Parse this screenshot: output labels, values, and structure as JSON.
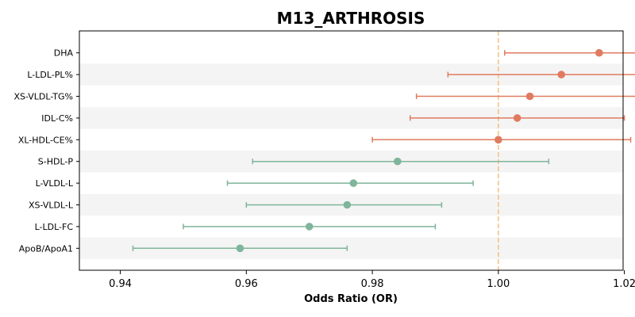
{
  "chart_data": {
    "type": "forest",
    "title": "M13_ARTHROSIS",
    "xlabel": "Odds Ratio (OR)",
    "ylabel": "",
    "xlim": [
      0.9335,
      1.0198
    ],
    "xticks": [
      "0.94",
      "0.96",
      "0.98",
      "1.00",
      "1.02"
    ],
    "reference_line": 1.0,
    "colors": {
      "positive": "#e07b5f",
      "negative": "#7fb59a",
      "reference": "#f5c07a",
      "band": "#f4f4f4"
    },
    "rows": [
      {
        "label": "DHA",
        "or": 1.016,
        "lo": 1.001,
        "hi": 1.031,
        "color": "#e07b5f"
      },
      {
        "label": "L-LDL-PL%",
        "or": 1.01,
        "lo": 0.992,
        "hi": 1.028,
        "color": "#e07b5f"
      },
      {
        "label": "XS-VLDL-TG%",
        "or": 1.005,
        "lo": 0.987,
        "hi": 1.024,
        "color": "#e07b5f"
      },
      {
        "label": "IDL-C%",
        "or": 1.003,
        "lo": 0.986,
        "hi": 1.02,
        "color": "#e07b5f"
      },
      {
        "label": "XL-HDL-CE%",
        "or": 1.0,
        "lo": 0.98,
        "hi": 1.021,
        "color": "#e07b5f"
      },
      {
        "label": "S-HDL-P",
        "or": 0.984,
        "lo": 0.961,
        "hi": 1.008,
        "color": "#7fb59a"
      },
      {
        "label": "L-VLDL-L",
        "or": 0.977,
        "lo": 0.957,
        "hi": 0.996,
        "color": "#7fb59a"
      },
      {
        "label": "XS-VLDL-L",
        "or": 0.976,
        "lo": 0.96,
        "hi": 0.991,
        "color": "#7fb59a"
      },
      {
        "label": "L-LDL-FC",
        "or": 0.97,
        "lo": 0.95,
        "hi": 0.99,
        "color": "#7fb59a"
      },
      {
        "label": "ApoB/ApoA1",
        "or": 0.959,
        "lo": 0.942,
        "hi": 0.976,
        "color": "#7fb59a"
      }
    ]
  }
}
